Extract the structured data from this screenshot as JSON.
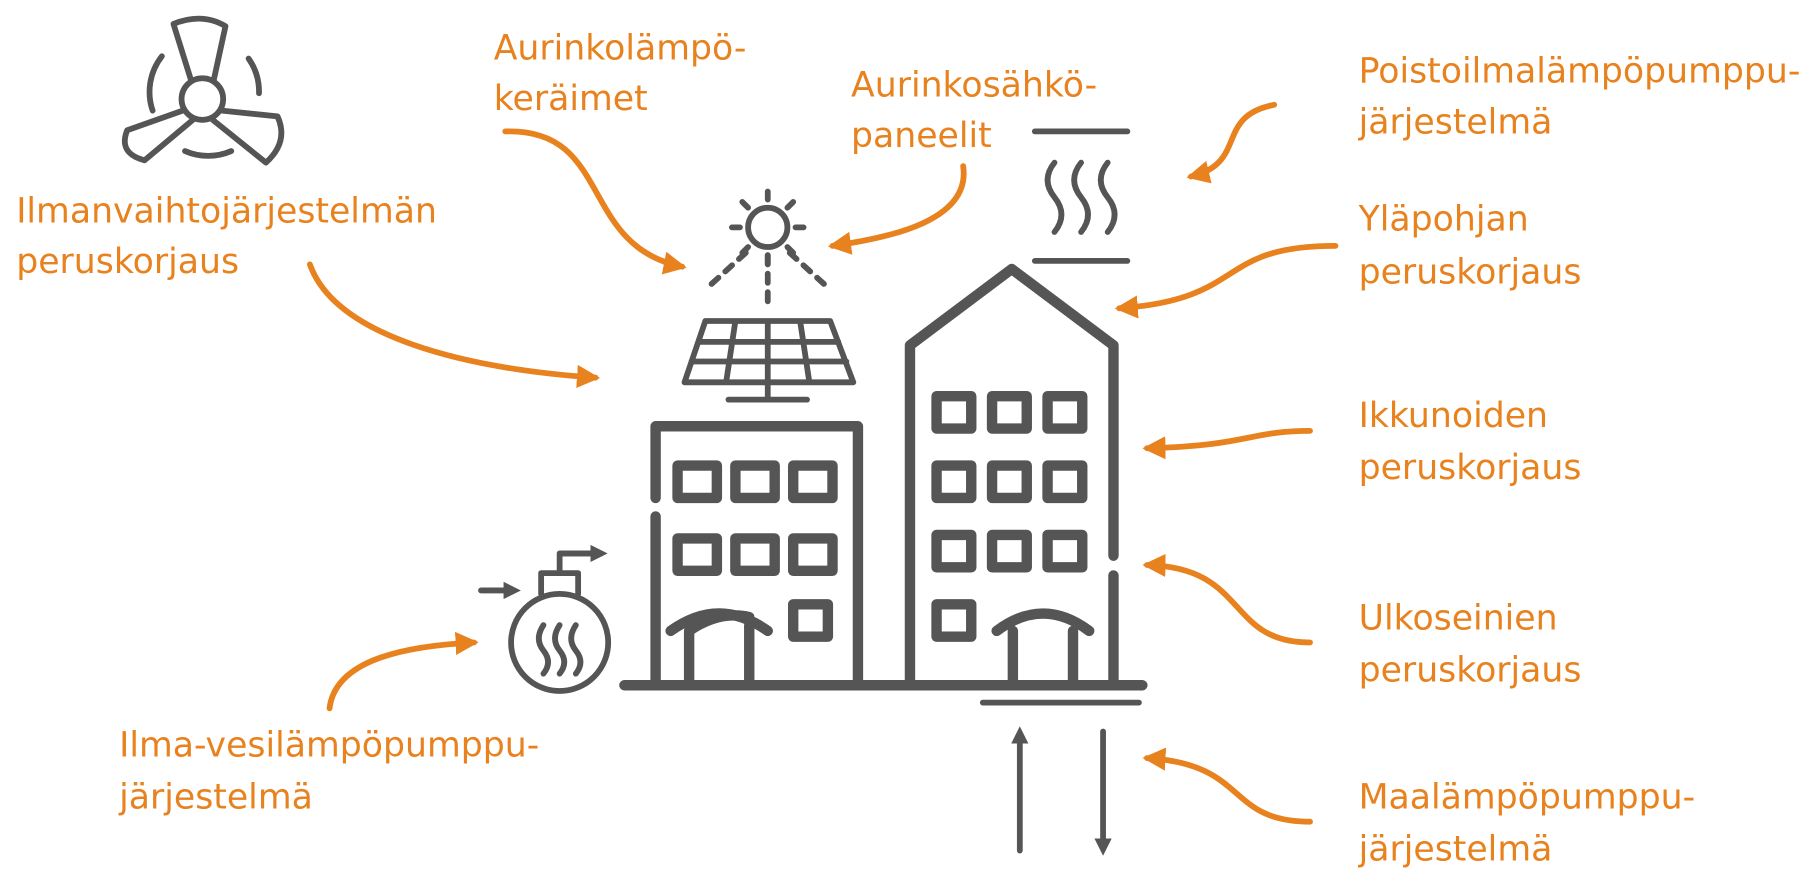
{
  "labels": [
    {
      "lines": [
        "Ilmanvaihtojärjestelmän",
        "peruskorjaus"
      ]
    },
    {
      "lines": [
        "Aurinkolämpö-",
        "keräimet"
      ]
    },
    {
      "lines": [
        "Aurinkosähkö-",
        "paneelit"
      ]
    },
    {
      "lines": [
        "Poistoilmalämpöpumppu-",
        "järjestelmä"
      ]
    },
    {
      "lines": [
        "Yläpohjan",
        "peruskorjaus"
      ]
    },
    {
      "lines": [
        "Ikkunoiden",
        "peruskorjaus"
      ]
    },
    {
      "lines": [
        "Ulkoseinien",
        "peruskorjaus"
      ]
    },
    {
      "lines": [
        "Maalämpöpumppu-",
        "järjestelmä"
      ]
    },
    {
      "lines": [
        "Ilma-vesilämpöpumppu-",
        "järjestelmä"
      ]
    }
  ]
}
